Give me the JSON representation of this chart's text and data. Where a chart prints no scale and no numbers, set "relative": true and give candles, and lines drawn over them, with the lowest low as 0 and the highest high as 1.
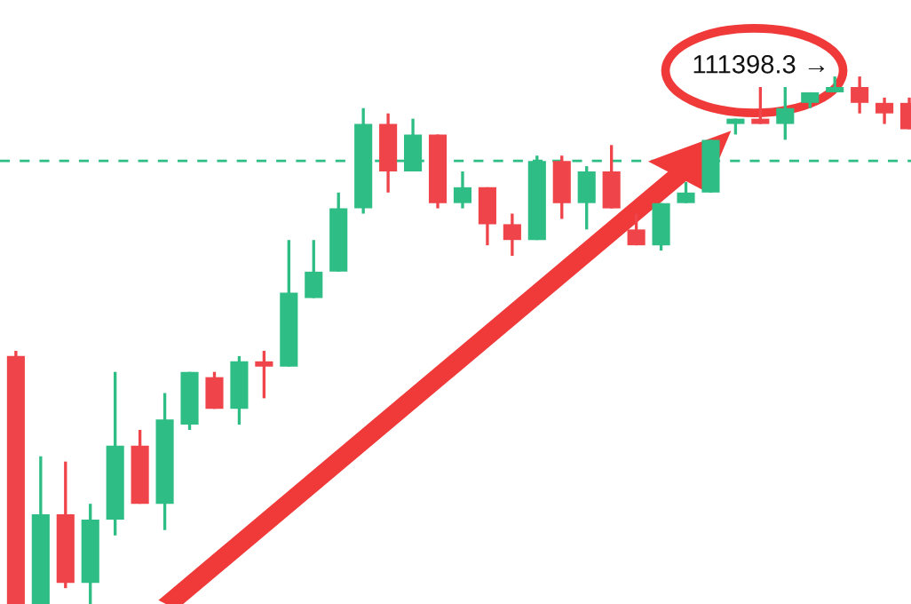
{
  "chart_data": {
    "type": "candlestick",
    "relative": true,
    "categories": [
      null,
      null,
      null,
      null,
      null,
      null,
      null,
      null,
      null,
      null,
      null,
      null,
      null,
      null,
      null,
      null,
      null,
      null,
      null,
      null,
      null,
      null,
      null,
      null,
      null,
      null,
      null,
      null,
      null,
      null,
      null,
      null,
      null,
      null,
      null,
      null,
      null
    ],
    "ohlc": [
      [
        0.47,
        0.48,
        0,
        0
      ],
      [
        0,
        0.28,
        0,
        0.17
      ],
      [
        0.17,
        0.27,
        0.03,
        0.04
      ],
      [
        0.04,
        0.19,
        0,
        0.16
      ],
      [
        0.16,
        0.44,
        0.13,
        0.3
      ],
      [
        0.3,
        0.33,
        0.19,
        0.19
      ],
      [
        0.19,
        0.4,
        0.14,
        0.35
      ],
      [
        0.34,
        0.44,
        0.33,
        0.44
      ],
      [
        0.43,
        0.44,
        0.37,
        0.37
      ],
      [
        0.37,
        0.47,
        0.34,
        0.46
      ],
      [
        0.46,
        0.48,
        0.39,
        0.45
      ],
      [
        0.45,
        0.69,
        0.45,
        0.59
      ],
      [
        0.58,
        0.69,
        0.58,
        0.63
      ],
      [
        0.63,
        0.78,
        0.63,
        0.75
      ],
      [
        0.75,
        0.94,
        0.74,
        0.91
      ],
      [
        0.91,
        0.93,
        0.78,
        0.82
      ],
      [
        0.82,
        0.92,
        0.82,
        0.89
      ],
      [
        0.89,
        0.89,
        0.75,
        0.76
      ],
      [
        0.76,
        0.82,
        0.75,
        0.79
      ],
      [
        0.79,
        0.79,
        0.68,
        0.72
      ],
      [
        0.72,
        0.74,
        0.66,
        0.69
      ],
      [
        0.69,
        0.85,
        0.69,
        0.84
      ],
      [
        0.84,
        0.85,
        0.73,
        0.76
      ],
      [
        0.76,
        0.83,
        0.71,
        0.82
      ],
      [
        0.82,
        0.87,
        0.75,
        0.75
      ],
      [
        0.71,
        0.74,
        0.68,
        0.68
      ],
      [
        0.68,
        0.76,
        0.67,
        0.76
      ],
      [
        0.76,
        0.8,
        0.76,
        0.78
      ],
      [
        0.78,
        0.88,
        0.78,
        0.88
      ],
      [
        0.91,
        0.92,
        0.89,
        0.92
      ],
      [
        0.92,
        0.98,
        0.91,
        0.91
      ],
      [
        0.91,
        0.98,
        0.88,
        0.94
      ],
      [
        0.95,
        0.97,
        0.94,
        0.97
      ],
      [
        0.97,
        1,
        0.97,
        0.98
      ],
      [
        0.98,
        1,
        0.93,
        0.95
      ],
      [
        0.95,
        0.96,
        0.91,
        0.93
      ],
      [
        0.95,
        0.96,
        0.9,
        0.9
      ]
    ],
    "colors": [
      "#ef454a",
      "#2ebd85",
      "#ef454a",
      "#2ebd85",
      "#2ebd85",
      "#ef454a",
      "#2ebd85",
      "#2ebd85",
      "#ef454a",
      "#2ebd85",
      "#ef454a",
      "#2ebd85",
      "#2ebd85",
      "#2ebd85",
      "#2ebd85",
      "#ef454a",
      "#2ebd85",
      "#ef454a",
      "#2ebd85",
      "#ef454a",
      "#ef454a",
      "#2ebd85",
      "#ef454a",
      "#2ebd85",
      "#ef454a",
      "#ef454a",
      "#2ebd85",
      "#2ebd85",
      "#2ebd85",
      "#2ebd85",
      "#ef454a",
      "#2ebd85",
      "#2ebd85",
      "#2ebd85",
      "#ef454a",
      "#ef454a",
      "#ef454a"
    ],
    "ref_lines": [
      {
        "axis": "y",
        "value": 0.84,
        "color": "#2ebd85",
        "line_style": "dashed"
      }
    ],
    "annotations": [
      "111398.3 →"
    ]
  }
}
